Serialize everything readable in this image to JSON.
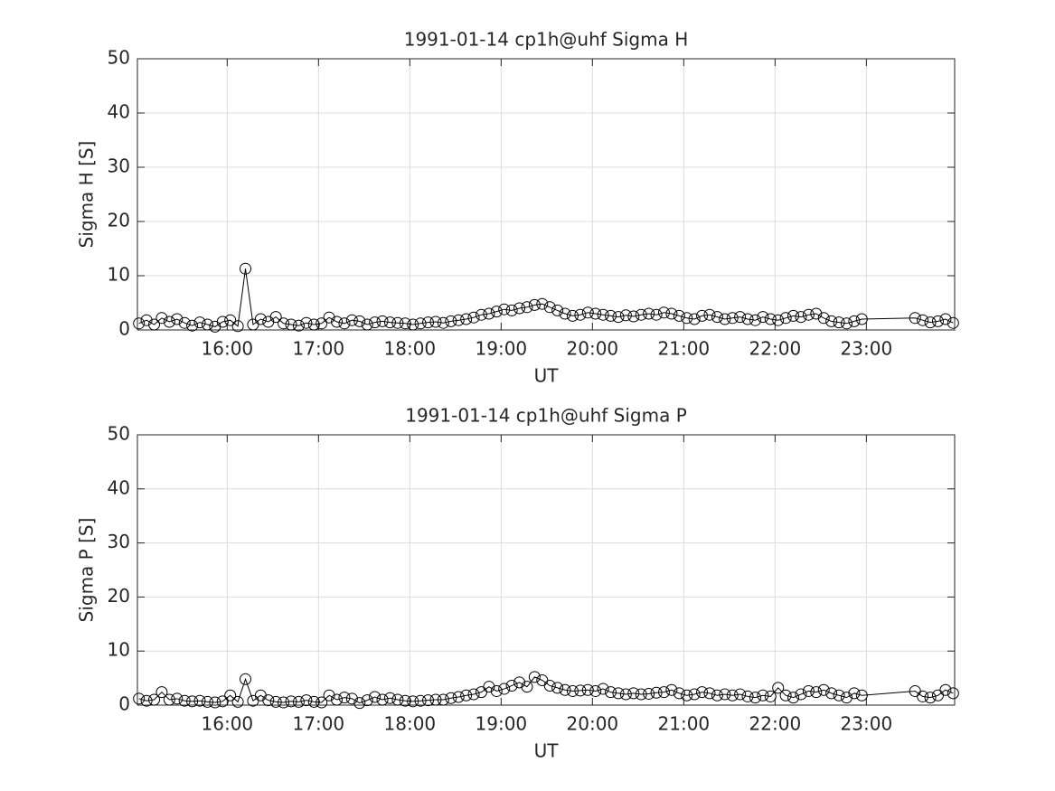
{
  "chart_data": [
    {
      "type": "line",
      "title": "1991-01-14  cp1h@uhf Sigma H",
      "xlabel": "UT",
      "ylabel": "Sigma H [S]",
      "xlim": [
        "15:01",
        "23:58"
      ],
      "xticks": [
        "16:00",
        "17:00",
        "18:00",
        "19:00",
        "20:00",
        "21:00",
        "22:00",
        "23:00"
      ],
      "ylim": [
        0,
        50
      ],
      "yticks": [
        0,
        10,
        20,
        30,
        40,
        50
      ],
      "grid": true,
      "marker": "circle",
      "x": [
        "15:02",
        "15:07",
        "15:12",
        "15:17",
        "15:22",
        "15:27",
        "15:32",
        "15:37",
        "15:42",
        "15:47",
        "15:52",
        "15:57",
        "16:02",
        "16:07",
        "16:12",
        "16:17",
        "16:22",
        "16:27",
        "16:32",
        "16:37",
        "16:42",
        "16:47",
        "16:52",
        "16:57",
        "17:02",
        "17:07",
        "17:12",
        "17:17",
        "17:22",
        "17:27",
        "17:32",
        "17:37",
        "17:42",
        "17:47",
        "17:52",
        "17:57",
        "18:02",
        "18:07",
        "18:12",
        "18:17",
        "18:22",
        "18:27",
        "18:32",
        "18:37",
        "18:42",
        "18:47",
        "18:52",
        "18:57",
        "19:02",
        "19:07",
        "19:12",
        "19:17",
        "19:22",
        "19:27",
        "19:32",
        "19:37",
        "19:42",
        "19:47",
        "19:52",
        "19:57",
        "20:02",
        "20:07",
        "20:12",
        "20:17",
        "20:22",
        "20:27",
        "20:32",
        "20:37",
        "20:42",
        "20:47",
        "20:52",
        "20:57",
        "21:02",
        "21:07",
        "21:12",
        "21:17",
        "21:22",
        "21:27",
        "21:32",
        "21:37",
        "21:42",
        "21:47",
        "21:52",
        "21:57",
        "22:02",
        "22:07",
        "22:12",
        "22:17",
        "22:22",
        "22:27",
        "22:32",
        "22:37",
        "22:42",
        "22:47",
        "22:52",
        "22:57",
        "23:32",
        "23:37",
        "23:42",
        "23:47",
        "23:52",
        "23:57"
      ],
      "series": [
        {
          "name": "Sigma H",
          "color": "#000000",
          "values": [
            1.2,
            1.8,
            1.0,
            2.2,
            1.5,
            2.0,
            1.3,
            0.8,
            1.4,
            1.0,
            0.6,
            1.5,
            1.8,
            0.7,
            11.3,
            1.0,
            2.0,
            1.5,
            2.4,
            1.2,
            1.0,
            0.8,
            1.3,
            1.0,
            1.2,
            2.3,
            1.5,
            1.2,
            1.8,
            1.6,
            1.0,
            1.4,
            1.6,
            1.4,
            1.3,
            1.2,
            1.0,
            1.2,
            1.4,
            1.5,
            1.3,
            1.6,
            1.8,
            2.0,
            2.3,
            2.8,
            3.0,
            3.4,
            3.8,
            3.6,
            4.0,
            4.2,
            4.6,
            4.8,
            4.2,
            3.6,
            3.0,
            2.6,
            2.8,
            3.2,
            3.0,
            2.8,
            2.6,
            2.4,
            2.7,
            2.5,
            2.8,
            3.0,
            2.8,
            3.2,
            3.0,
            2.6,
            2.2,
            2.0,
            2.6,
            2.8,
            2.4,
            2.0,
            2.2,
            2.4,
            2.0,
            1.8,
            2.4,
            2.0,
            1.8,
            2.2,
            2.6,
            2.4,
            2.8,
            3.0,
            2.2,
            1.6,
            1.4,
            1.2,
            1.6,
            2.0,
            2.2,
            1.8,
            1.4,
            1.6,
            2.0,
            1.3
          ]
        }
      ]
    },
    {
      "type": "line",
      "title": "1991-01-14  cp1h@uhf Sigma P",
      "xlabel": "UT",
      "ylabel": "Sigma P [S]",
      "xlim": [
        "15:01",
        "23:58"
      ],
      "xticks": [
        "16:00",
        "17:00",
        "18:00",
        "19:00",
        "20:00",
        "21:00",
        "22:00",
        "23:00"
      ],
      "ylim": [
        0,
        50
      ],
      "yticks": [
        0,
        10,
        20,
        30,
        40,
        50
      ],
      "grid": true,
      "marker": "circle",
      "x": [
        "15:02",
        "15:07",
        "15:12",
        "15:17",
        "15:22",
        "15:27",
        "15:32",
        "15:37",
        "15:42",
        "15:47",
        "15:52",
        "15:57",
        "16:02",
        "16:07",
        "16:12",
        "16:17",
        "16:22",
        "16:27",
        "16:32",
        "16:37",
        "16:42",
        "16:47",
        "16:52",
        "16:57",
        "17:02",
        "17:07",
        "17:12",
        "17:17",
        "17:22",
        "17:27",
        "17:32",
        "17:37",
        "17:42",
        "17:47",
        "17:52",
        "17:57",
        "18:02",
        "18:07",
        "18:12",
        "18:17",
        "18:22",
        "18:27",
        "18:32",
        "18:37",
        "18:42",
        "18:47",
        "18:52",
        "18:57",
        "19:02",
        "19:07",
        "19:12",
        "19:17",
        "19:22",
        "19:27",
        "19:32",
        "19:37",
        "19:42",
        "19:47",
        "19:52",
        "19:57",
        "20:02",
        "20:07",
        "20:12",
        "20:17",
        "20:22",
        "20:27",
        "20:32",
        "20:37",
        "20:42",
        "20:47",
        "20:52",
        "20:57",
        "21:02",
        "21:07",
        "21:12",
        "21:17",
        "21:22",
        "21:27",
        "21:32",
        "21:37",
        "21:42",
        "21:47",
        "21:52",
        "21:57",
        "22:02",
        "22:07",
        "22:12",
        "22:17",
        "22:22",
        "22:27",
        "22:32",
        "22:37",
        "22:42",
        "22:47",
        "22:52",
        "22:57",
        "23:32",
        "23:37",
        "23:42",
        "23:47",
        "23:52",
        "23:57"
      ],
      "series": [
        {
          "name": "Sigma P",
          "color": "#000000",
          "values": [
            1.2,
            0.8,
            1.0,
            2.4,
            1.0,
            1.2,
            0.8,
            0.7,
            0.8,
            0.6,
            0.5,
            0.7,
            1.8,
            0.6,
            4.8,
            0.8,
            1.8,
            0.9,
            0.6,
            0.5,
            0.7,
            0.6,
            0.9,
            0.6,
            0.5,
            1.8,
            1.0,
            1.4,
            1.2,
            0.4,
            0.9,
            1.5,
            1.0,
            1.3,
            1.0,
            0.8,
            0.7,
            0.8,
            0.9,
            1.0,
            1.0,
            1.3,
            1.5,
            1.8,
            2.0,
            2.4,
            3.4,
            2.6,
            3.0,
            3.6,
            4.2,
            3.4,
            5.2,
            4.6,
            3.6,
            3.2,
            2.8,
            2.6,
            2.7,
            2.8,
            2.6,
            3.0,
            2.4,
            2.2,
            2.0,
            2.2,
            2.0,
            2.1,
            2.3,
            2.4,
            2.8,
            2.2,
            1.8,
            2.0,
            2.4,
            2.2,
            1.8,
            2.0,
            1.8,
            2.0,
            1.6,
            1.4,
            1.8,
            1.6,
            3.2,
            1.8,
            1.4,
            2.0,
            2.6,
            2.4,
            2.8,
            2.2,
            1.8,
            1.4,
            2.2,
            1.8,
            2.6,
            1.6,
            1.4,
            1.8,
            2.8,
            2.2
          ]
        }
      ]
    }
  ]
}
